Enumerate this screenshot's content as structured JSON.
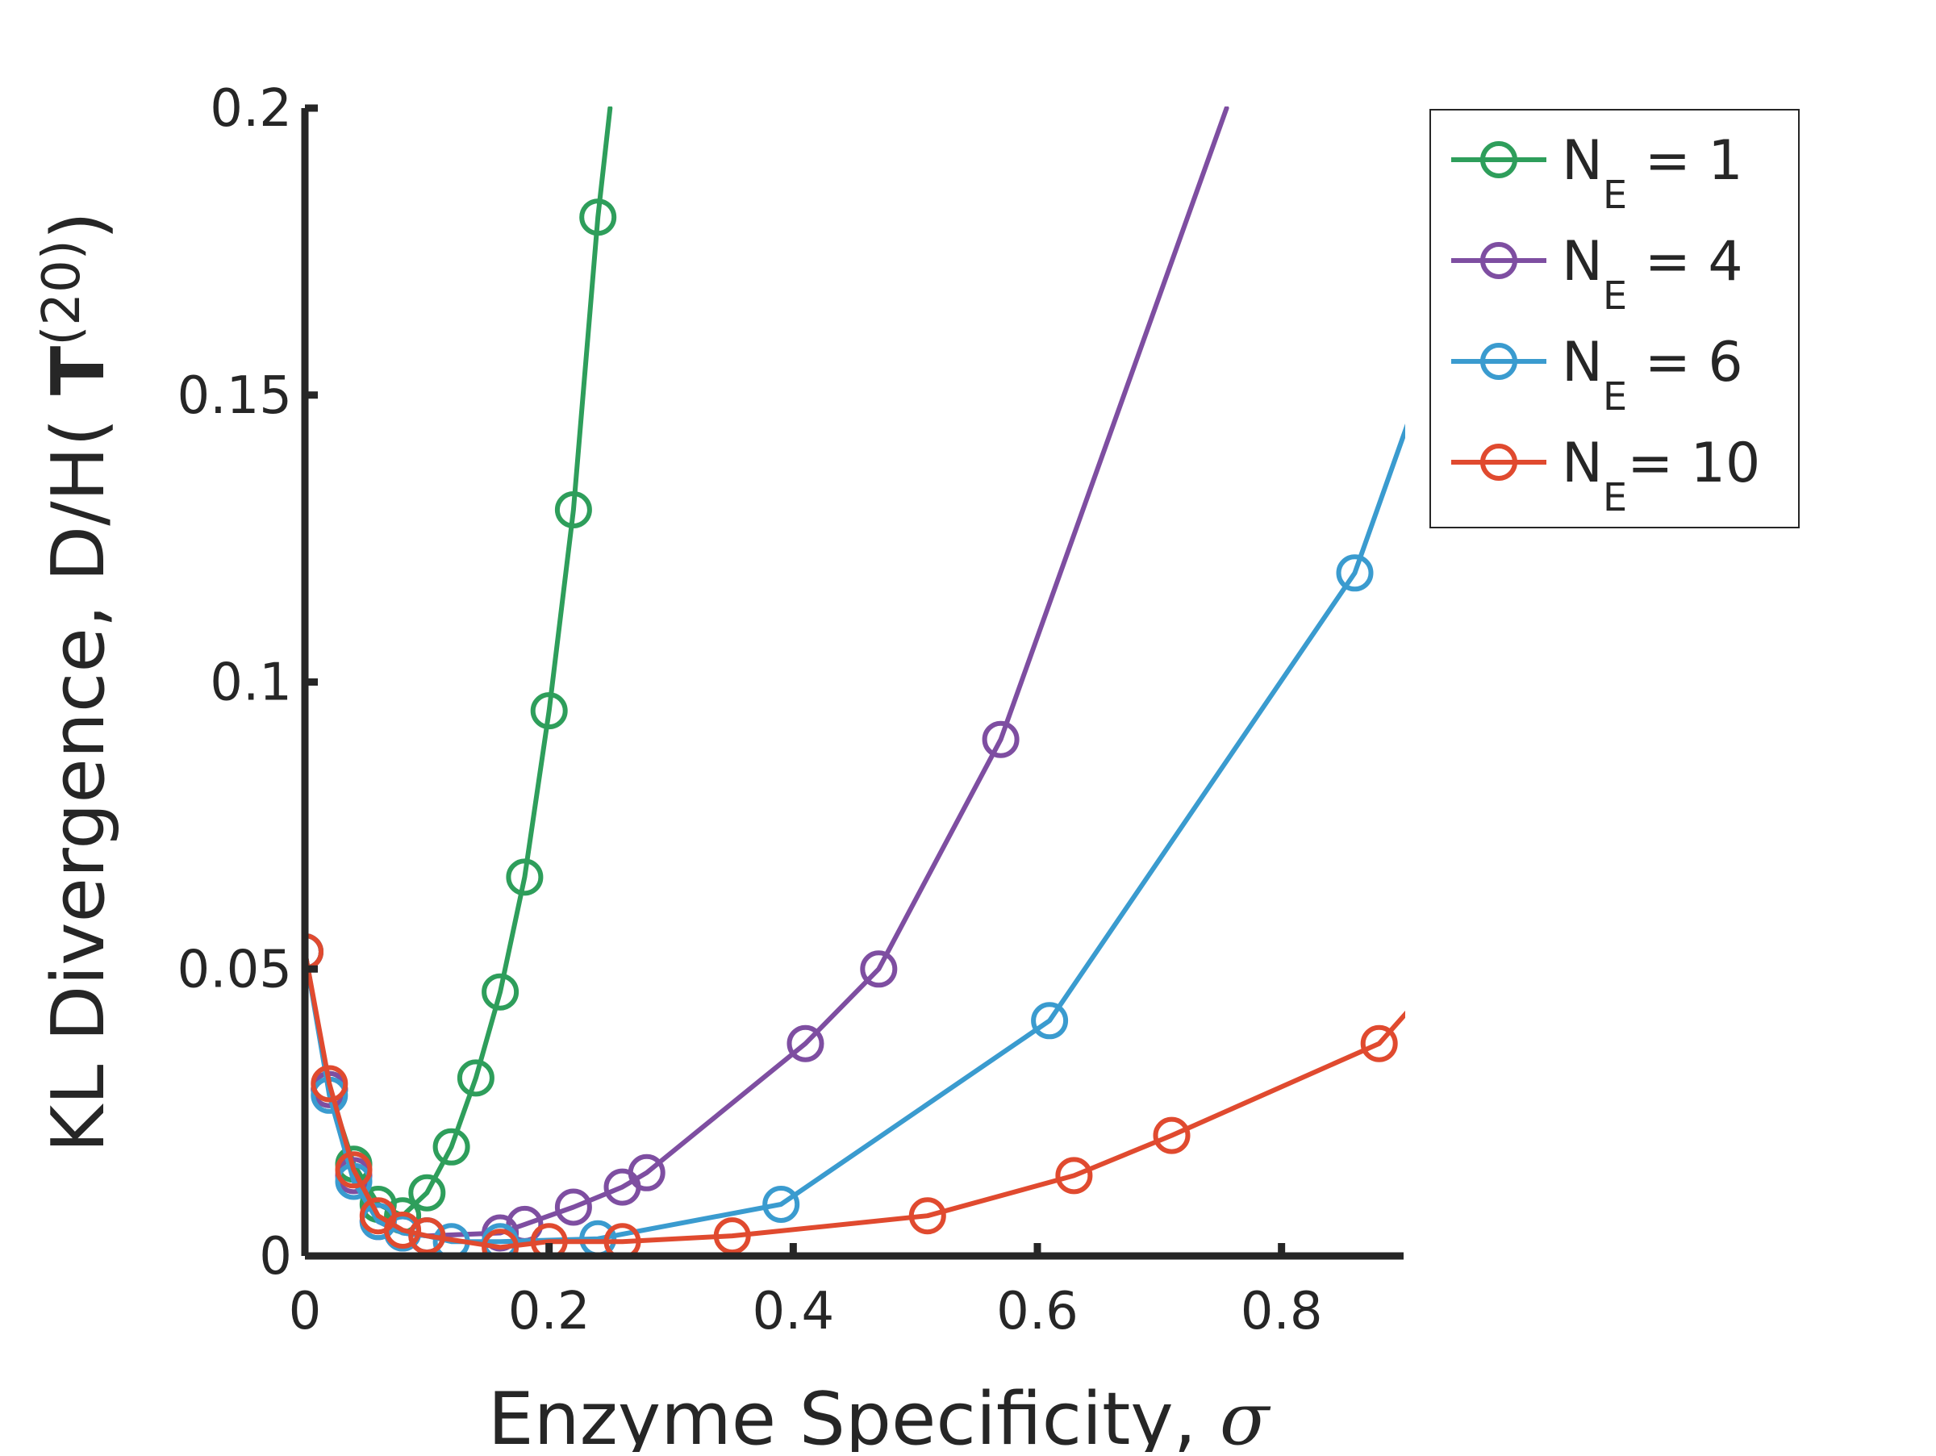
{
  "chart_data": {
    "type": "line",
    "xlabel": "Enzyme Specificity, ",
    "xlabel_symbol": "σ",
    "ylabel": "KL Divergence, D/H( ",
    "ylabel_bold": "T",
    "ylabel_sup": "(20)",
    "ylabel_close": ")",
    "xlim": [
      0,
      0.9
    ],
    "ylim": [
      0,
      0.2
    ],
    "xticks": [
      0,
      0.2,
      0.4,
      0.6,
      0.8
    ],
    "xtick_labels": [
      "0",
      "0.2",
      "0.4",
      "0.6",
      "0.8"
    ],
    "yticks": [
      0,
      0.05,
      0.1,
      0.15,
      0.2
    ],
    "ytick_labels": [
      "0",
      "0.05",
      "0.1",
      "0.15",
      "0.2"
    ],
    "grid": false,
    "legend_position": "top-right-outside",
    "series": [
      {
        "name": "N_E = 1",
        "legend_main": "N",
        "legend_sub": "E",
        "legend_rest": " = 1",
        "color": "#2e9e5b",
        "markers": [
          [
            0.0,
            0.053
          ],
          [
            0.02,
            0.029
          ],
          [
            0.04,
            0.016
          ],
          [
            0.06,
            0.009
          ],
          [
            0.08,
            0.007
          ],
          [
            0.1,
            0.011
          ],
          [
            0.12,
            0.019
          ],
          [
            0.14,
            0.031
          ],
          [
            0.16,
            0.046
          ],
          [
            0.18,
            0.066
          ],
          [
            0.2,
            0.095
          ],
          [
            0.22,
            0.13
          ],
          [
            0.24,
            0.181
          ]
        ],
        "line": [
          [
            0.0,
            0.053
          ],
          [
            0.02,
            0.029
          ],
          [
            0.04,
            0.016
          ],
          [
            0.06,
            0.009
          ],
          [
            0.08,
            0.007
          ],
          [
            0.1,
            0.011
          ],
          [
            0.12,
            0.019
          ],
          [
            0.14,
            0.031
          ],
          [
            0.16,
            0.046
          ],
          [
            0.18,
            0.066
          ],
          [
            0.2,
            0.095
          ],
          [
            0.22,
            0.13
          ],
          [
            0.24,
            0.181
          ],
          [
            0.25,
            0.2
          ]
        ]
      },
      {
        "name": "N_E = 4",
        "legend_main": "N",
        "legend_sub": "E",
        "legend_rest": " = 4",
        "color": "#7e4ea1",
        "markers": [
          [
            0.0,
            0.053
          ],
          [
            0.02,
            0.029
          ],
          [
            0.04,
            0.014
          ],
          [
            0.06,
            0.006
          ],
          [
            0.08,
            0.004
          ],
          [
            0.1,
            0.0035
          ],
          [
            0.16,
            0.004
          ],
          [
            0.18,
            0.0055
          ],
          [
            0.22,
            0.0085
          ],
          [
            0.26,
            0.012
          ],
          [
            0.28,
            0.0145
          ],
          [
            0.41,
            0.037
          ],
          [
            0.47,
            0.05
          ],
          [
            0.57,
            0.09
          ]
        ],
        "line": [
          [
            0.0,
            0.053
          ],
          [
            0.02,
            0.029
          ],
          [
            0.04,
            0.014
          ],
          [
            0.06,
            0.006
          ],
          [
            0.08,
            0.004
          ],
          [
            0.1,
            0.0035
          ],
          [
            0.16,
            0.004
          ],
          [
            0.18,
            0.0055
          ],
          [
            0.22,
            0.0085
          ],
          [
            0.26,
            0.012
          ],
          [
            0.28,
            0.0145
          ],
          [
            0.41,
            0.037
          ],
          [
            0.47,
            0.05
          ],
          [
            0.57,
            0.09
          ],
          [
            0.755,
            0.2
          ]
        ]
      },
      {
        "name": "N_E = 6",
        "legend_main": "N",
        "legend_sub": "E",
        "legend_rest": " = 6",
        "color": "#3a9bcf",
        "markers": [
          [
            0.0,
            0.053
          ],
          [
            0.02,
            0.028
          ],
          [
            0.04,
            0.013
          ],
          [
            0.06,
            0.006
          ],
          [
            0.08,
            0.004
          ],
          [
            0.1,
            0.0035
          ],
          [
            0.12,
            0.0025
          ],
          [
            0.16,
            0.0025
          ],
          [
            0.24,
            0.003
          ],
          [
            0.39,
            0.009
          ],
          [
            0.61,
            0.041
          ],
          [
            0.86,
            0.119
          ]
        ],
        "line": [
          [
            0.0,
            0.053
          ],
          [
            0.02,
            0.028
          ],
          [
            0.04,
            0.013
          ],
          [
            0.06,
            0.006
          ],
          [
            0.08,
            0.004
          ],
          [
            0.1,
            0.0035
          ],
          [
            0.12,
            0.0025
          ],
          [
            0.16,
            0.0025
          ],
          [
            0.24,
            0.003
          ],
          [
            0.39,
            0.009
          ],
          [
            0.61,
            0.041
          ],
          [
            0.86,
            0.119
          ],
          [
            0.905,
            0.146
          ]
        ]
      },
      {
        "name": "N_E = 10",
        "legend_main": "N",
        "legend_sub": "E",
        "legend_rest": "= 10",
        "color": "#e04a2f",
        "markers": [
          [
            0.0,
            0.053
          ],
          [
            0.02,
            0.03
          ],
          [
            0.04,
            0.015
          ],
          [
            0.06,
            0.007
          ],
          [
            0.08,
            0.0045
          ],
          [
            0.1,
            0.0035
          ],
          [
            0.16,
            0.0015
          ],
          [
            0.2,
            0.0025
          ],
          [
            0.26,
            0.0025
          ],
          [
            0.35,
            0.0035
          ],
          [
            0.51,
            0.007
          ],
          [
            0.63,
            0.014
          ],
          [
            0.71,
            0.021
          ],
          [
            0.88,
            0.037
          ]
        ],
        "line": [
          [
            0.0,
            0.053
          ],
          [
            0.02,
            0.03
          ],
          [
            0.04,
            0.015
          ],
          [
            0.06,
            0.007
          ],
          [
            0.08,
            0.0045
          ],
          [
            0.1,
            0.0035
          ],
          [
            0.16,
            0.0015
          ],
          [
            0.2,
            0.0025
          ],
          [
            0.26,
            0.0025
          ],
          [
            0.35,
            0.0035
          ],
          [
            0.51,
            0.007
          ],
          [
            0.63,
            0.014
          ],
          [
            0.71,
            0.021
          ],
          [
            0.88,
            0.037
          ],
          [
            0.905,
            0.043
          ]
        ]
      }
    ]
  }
}
